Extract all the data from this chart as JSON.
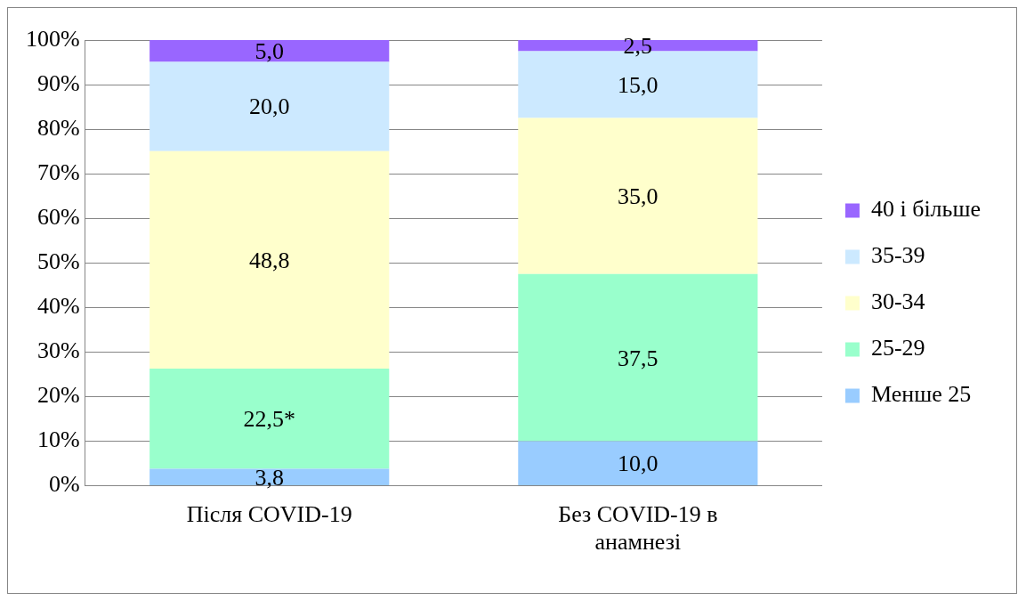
{
  "chart_data": {
    "type": "bar",
    "stacked": true,
    "categories": [
      "Після COVID-19",
      "Без COVID-19 в анамнезі"
    ],
    "series": [
      {
        "name": "Менше 25",
        "color": "#99ccff",
        "values": [
          3.8,
          10.0
        ],
        "value_labels": [
          "3,8",
          "10,0"
        ]
      },
      {
        "name": "25-29",
        "color": "#99ffcc",
        "values": [
          22.5,
          37.5
        ],
        "value_labels": [
          "22,5*",
          "37,5"
        ]
      },
      {
        "name": "30-34",
        "color": "#ffffcc",
        "values": [
          48.8,
          35.0
        ],
        "value_labels": [
          "48,8",
          "35,0"
        ]
      },
      {
        "name": "35-39",
        "color": "#cce9ff",
        "values": [
          20.0,
          15.0
        ],
        "value_labels": [
          "20,0",
          "15,0"
        ]
      },
      {
        "name": "40 і більше",
        "color": "#9966ff",
        "values": [
          5.0,
          2.5
        ],
        "value_labels": [
          "5,0",
          "2,5"
        ]
      }
    ],
    "ylim": [
      0,
      100
    ],
    "yticks": [
      {
        "value": 0,
        "label": "0%"
      },
      {
        "value": 10,
        "label": "10%"
      },
      {
        "value": 20,
        "label": "20%"
      },
      {
        "value": 30,
        "label": "30%"
      },
      {
        "value": 40,
        "label": "40%"
      },
      {
        "value": 50,
        "label": "50%"
      },
      {
        "value": 60,
        "label": "60%"
      },
      {
        "value": 70,
        "label": "70%"
      },
      {
        "value": 80,
        "label": "80%"
      },
      {
        "value": 90,
        "label": "90%"
      },
      {
        "value": 100,
        "label": "100%"
      }
    ],
    "grid": "y",
    "legend": "right"
  }
}
